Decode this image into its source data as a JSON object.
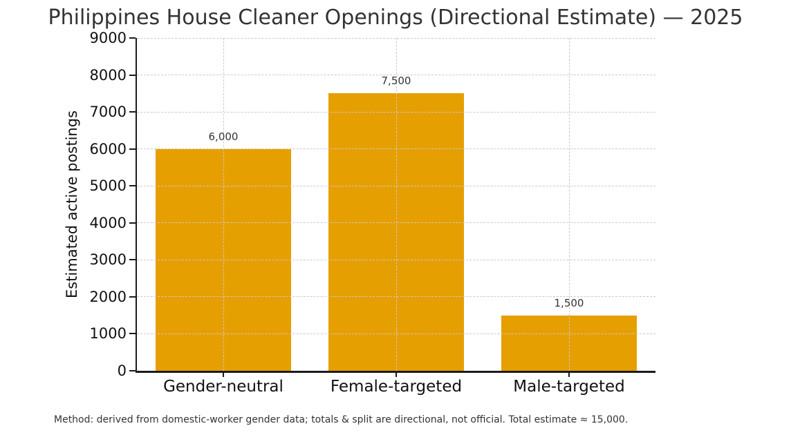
{
  "chart_data": {
    "type": "bar",
    "title": "Philippines House Cleaner Openings (Directional Estimate) — 2025",
    "categories": [
      "Gender-neutral",
      "Female-targeted",
      "Male-targeted"
    ],
    "values": [
      6000,
      7500,
      1500
    ],
    "value_labels": [
      "6,000",
      "7,500",
      "1,500"
    ],
    "xlabel": "",
    "ylabel": "Estimated active postings",
    "ylim": [
      0,
      9000
    ],
    "yticks": [
      0,
      1000,
      2000,
      3000,
      4000,
      5000,
      6000,
      7000,
      8000,
      9000
    ],
    "bar_color": "#E69F00",
    "grid": {
      "show": true,
      "style": "dashed",
      "color": "#c9c9c9",
      "axes": "both",
      "drawn_above_bars": true
    },
    "legend": "none",
    "note": "Method: derived from domestic-worker gender data; totals & split are directional, not official. Total estimate ≈ 15,000."
  }
}
